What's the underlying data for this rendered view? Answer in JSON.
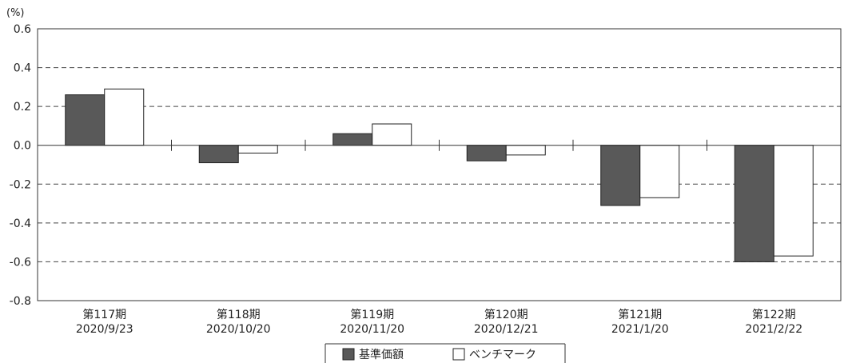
{
  "chart_data": {
    "type": "bar",
    "unit_label": "(%)",
    "ylim": [
      -0.8,
      0.6
    ],
    "yticks": [
      "0.6",
      "0.4",
      "0.2",
      "0.0",
      "-0.2",
      "-0.4",
      "-0.6",
      "-0.8"
    ],
    "ytick_values": [
      0.6,
      0.4,
      0.2,
      0.0,
      -0.2,
      -0.4,
      -0.6,
      -0.8
    ],
    "grid": "dashed horizontal",
    "legend_position": "bottom",
    "categories": [
      {
        "line1": "第117期",
        "line2": "2020/9/23"
      },
      {
        "line1": "第118期",
        "line2": "2020/10/20"
      },
      {
        "line1": "第119期",
        "line2": "2020/11/20"
      },
      {
        "line1": "第120期",
        "line2": "2020/12/21"
      },
      {
        "line1": "第121期",
        "line2": "2021/1/20"
      },
      {
        "line1": "第122期",
        "line2": "2021/2/22"
      }
    ],
    "series": [
      {
        "name": "基準価額",
        "color": "#595959",
        "values": [
          0.26,
          -0.09,
          0.06,
          -0.08,
          -0.31,
          -0.6
        ]
      },
      {
        "name": "ベンチマーク",
        "color": "#ffffff",
        "values": [
          0.29,
          -0.04,
          0.11,
          -0.05,
          -0.27,
          -0.57
        ]
      }
    ]
  }
}
